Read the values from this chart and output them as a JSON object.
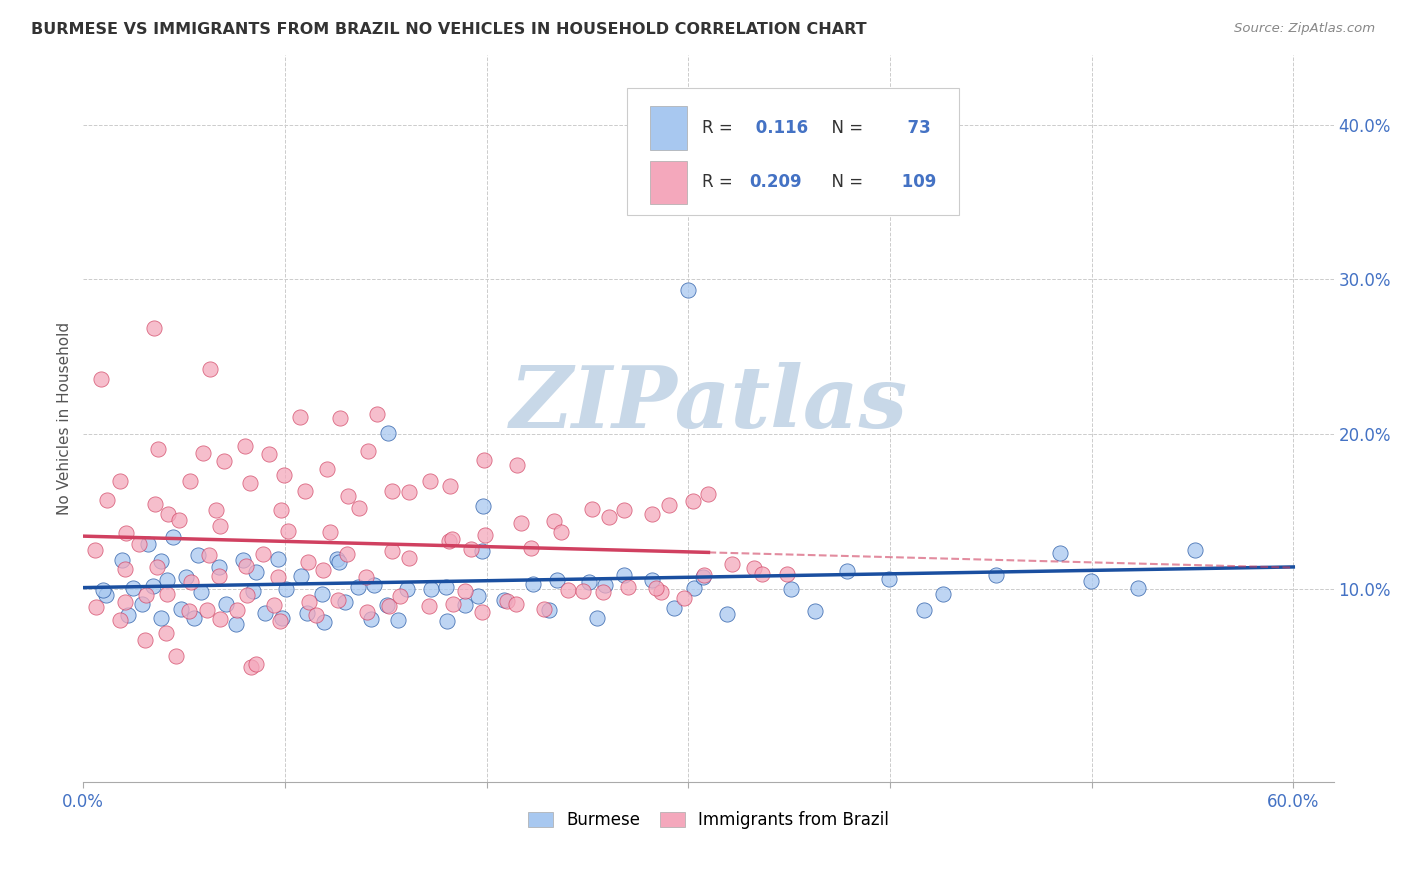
{
  "title": "BURMESE VS IMMIGRANTS FROM BRAZIL NO VEHICLES IN HOUSEHOLD CORRELATION CHART",
  "source": "Source: ZipAtlas.com",
  "ylabel": "No Vehicles in Household",
  "xlim": [
    0.0,
    0.62
  ],
  "ylim": [
    -0.025,
    0.445
  ],
  "background_color": "#ffffff",
  "grid_color": "#cccccc",
  "watermark_text": "ZIPatlas",
  "watermark_color": "#c8d8e8",
  "legend_R1": "0.116",
  "legend_N1": "73",
  "legend_R2": "0.209",
  "legend_N2": "109",
  "series1_color": "#a8c8f0",
  "series2_color": "#f4a8bc",
  "trendline1_color": "#1a4fa0",
  "trendline2_color": "#d04060",
  "legend_text_color": "#333333",
  "legend_value_color": "#4472c4",
  "tick_color": "#4472c4",
  "title_color": "#333333",
  "source_color": "#888888",
  "ylabel_color": "#555555"
}
